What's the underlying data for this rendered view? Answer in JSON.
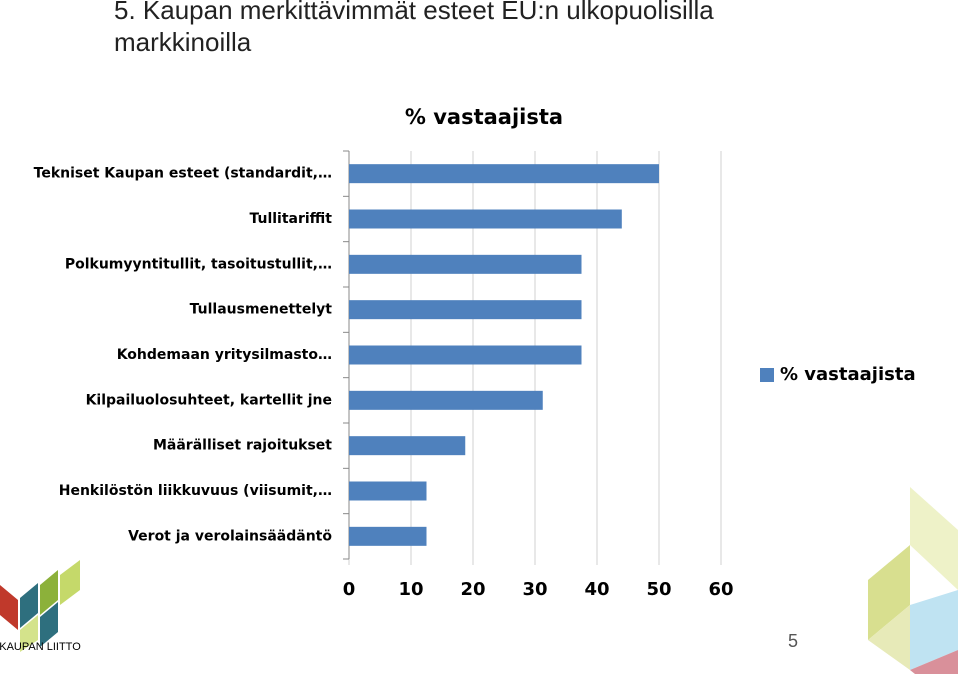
{
  "slide_title": "5. Kaupan merkittävimmät esteet EU:n ulkopuolisilla markkinoilla",
  "logo_text": "KAUPAN LIITTO",
  "page_number": "5",
  "chart_data": {
    "type": "bar",
    "orientation": "horizontal",
    "title": "% vastaajista",
    "categories": [
      "Tekniset Kaupan esteet (standardit,…",
      "Tullitariffit",
      "Polkumyyntitullit, tasoitustullit,…",
      "Tullausmenettelyt",
      "Kohdemaan yritysilmasto…",
      "Kilpailuolosuhteet, kartellit jne",
      "Määrälliset rajoitukset",
      "Henkilöstön liikkuvuus (viisumit,…",
      "Verot ja verolainsäädäntö"
    ],
    "series": [
      {
        "name": "% vastaajista",
        "color": "#4f81bd",
        "values": [
          50,
          44,
          37.5,
          37.5,
          37.5,
          31.25,
          18.75,
          12.5,
          12.5
        ]
      }
    ],
    "xlim": [
      0,
      60
    ],
    "xticks": [
      0,
      10,
      20,
      30,
      40,
      50,
      60
    ],
    "grid": true,
    "legend": "right"
  }
}
